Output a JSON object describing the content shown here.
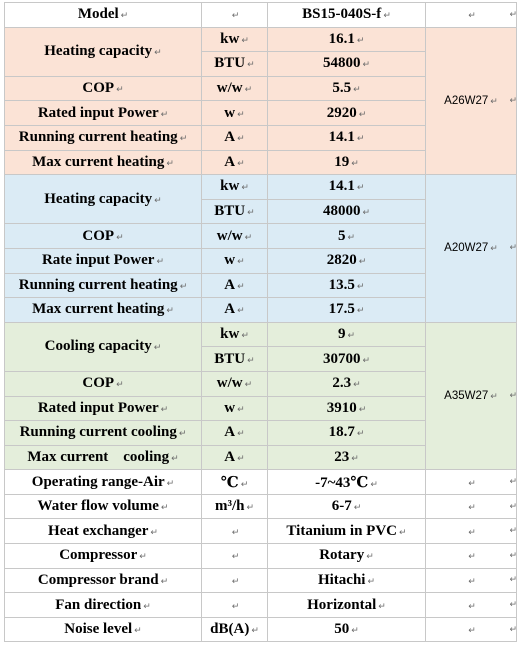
{
  "header": {
    "label": "Model",
    "model": "BS15-040S-f"
  },
  "groups": [
    {
      "condition": "A26W27",
      "rows": [
        {
          "label": "Heating capacity",
          "unit": "kw",
          "value": "16.1"
        },
        {
          "unit": "BTU",
          "value": "54800"
        },
        {
          "label": "COP",
          "unit": "w/w",
          "value": "5.5"
        },
        {
          "label": "Rated input Power",
          "unit": "w",
          "value": "2920"
        },
        {
          "label": "Running current heating",
          "unit": "A",
          "value": "14.1"
        },
        {
          "label": "Max current heating",
          "unit": "A",
          "value": "19"
        }
      ]
    },
    {
      "condition": "A20W27",
      "rows": [
        {
          "label": "Heating capacity",
          "unit": "kw",
          "value": "14.1"
        },
        {
          "unit": "BTU",
          "value": "48000"
        },
        {
          "label": "COP",
          "unit": "w/w",
          "value": "5"
        },
        {
          "label": "Rate input Power",
          "unit": "w",
          "value": "2820"
        },
        {
          "label": "Running current heating",
          "unit": "A",
          "value": "13.5"
        },
        {
          "label": "Max current heating",
          "unit": "A",
          "value": "17.5"
        }
      ]
    },
    {
      "condition": "A35W27",
      "rows": [
        {
          "label": "Cooling capacity",
          "unit": "kw",
          "value": "9"
        },
        {
          "unit": "BTU",
          "value": "30700"
        },
        {
          "label": "COP",
          "unit": "w/w",
          "value": "2.3"
        },
        {
          "label": "Rated input Power",
          "unit": "w",
          "value": "3910"
        },
        {
          "label": "Running current cooling",
          "unit": "A",
          "value": "18.7"
        },
        {
          "label": "Max current    cooling",
          "unit": "A",
          "value": "23"
        }
      ]
    }
  ],
  "extra": [
    {
      "label": "Operating range-Air",
      "unit": "℃",
      "value": "-7~43℃"
    },
    {
      "label": "Water flow volume",
      "unit": "m³/h",
      "value": "6-7"
    },
    {
      "label": "Heat exchanger",
      "unit": "",
      "value": "Titanium in PVC"
    },
    {
      "label": "Compressor",
      "unit": "",
      "value": "Rotary"
    },
    {
      "label": "Compressor brand",
      "unit": "",
      "value": "Hitachi"
    },
    {
      "label": "Fan direction",
      "unit": "",
      "value": "Horizontal"
    },
    {
      "label": "Noise level",
      "unit": "dB(A)",
      "value": "50"
    }
  ]
}
